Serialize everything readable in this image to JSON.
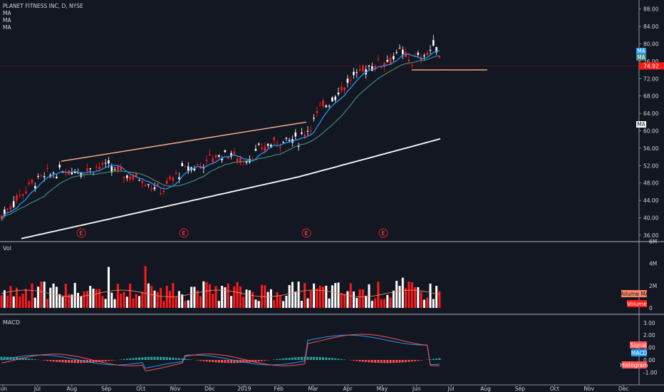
{
  "header": {
    "title": "PLANET FITNESS INC, D, NYSE",
    "ma_labels": [
      "MA",
      "MA",
      "MA"
    ]
  },
  "panes": {
    "volume_title": "Vol",
    "macd_title": "MACD"
  },
  "colors": {
    "background": "#131722",
    "up": "#ffffff",
    "down": "#ff1a1a",
    "ma_fast": "#2196f3",
    "ma_mid": "#3c8c7a",
    "ma_slow": "#ffffff",
    "trendline": "#ffb08a",
    "price_line": "#ff1a1a",
    "signal": "#ff5252",
    "macd": "#2196f3",
    "hist_pos": "#26a69a",
    "hist_neg": "#ff5252"
  },
  "price_axis": {
    "ticks": [
      "88.00",
      "84.00",
      "80.00",
      "76.00",
      "72.00",
      "68.00",
      "64.00",
      "60.00",
      "56.00",
      "52.00",
      "48.00",
      "44.00",
      "40.00",
      "36.00"
    ],
    "current_price": "74.92",
    "badges": [
      "MA",
      "MA",
      "MA"
    ]
  },
  "volume_axis": {
    "ticks": [
      "6M",
      "4M",
      "2M",
      "0"
    ],
    "badges": [
      "Volume MA",
      "Volume"
    ]
  },
  "macd_axis": {
    "ticks": [
      "3.00",
      "2.00",
      "1.00",
      "0.00",
      "-1.00"
    ],
    "badges": [
      "Signal",
      "MACD",
      "Histogram"
    ]
  },
  "time_axis": {
    "labels": [
      "Jun",
      "Jul",
      "Aug",
      "Sep",
      "Oct",
      "Nov",
      "Dec",
      "2019",
      "Feb",
      "Mar",
      "Apr",
      "May",
      "Jun",
      "Jul",
      "Aug",
      "Sep",
      "Oct",
      "Nov",
      "Dec"
    ]
  },
  "earnings_markers": [
    "E",
    "E",
    "E",
    "E"
  ],
  "chart_data": {
    "type": "candlestick",
    "series": [
      {
        "name": "Price",
        "approx_closes_by_month": {
          "Jun": 79,
          "Jul": 46,
          "Aug": 49,
          "Sep": 51,
          "Oct": 49,
          "Nov": 51,
          "Dec": 54,
          "2019": 56,
          "Feb": 58,
          "Mar": 64,
          "Apr": 74,
          "May": 78
        }
      },
      {
        "name": "MA",
        "note": "fast"
      },
      {
        "name": "MA",
        "note": "medium"
      },
      {
        "name": "MA",
        "note": "slow"
      }
    ],
    "ylim_price": [
      35,
      89
    ],
    "last_price": 74.92,
    "macd_ylim": [
      -1.6,
      3.3
    ],
    "volume_ylim": [
      0,
      6.2
    ]
  }
}
